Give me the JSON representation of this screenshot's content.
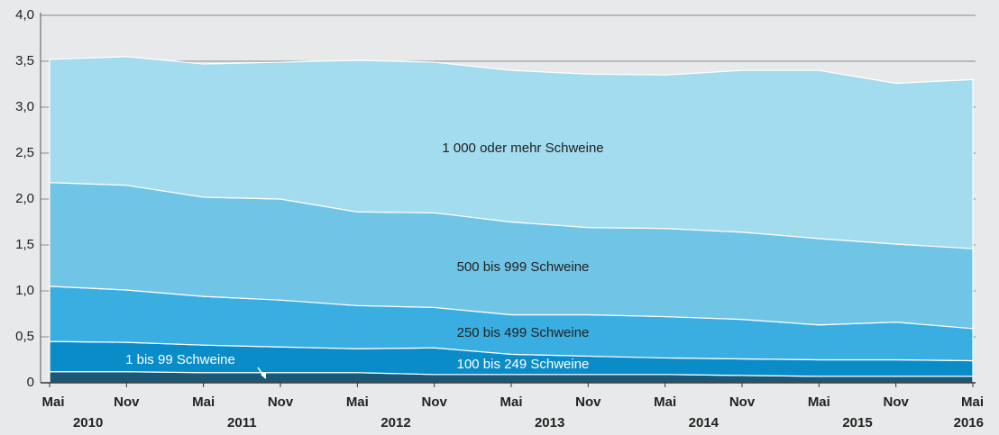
{
  "chart_data": {
    "type": "stacked_area",
    "categories": [
      "Mai",
      "Nov",
      "Mai",
      "Nov",
      "Mai",
      "Nov",
      "Mai",
      "Nov",
      "Mai",
      "Nov",
      "Mai",
      "Nov",
      "Mai"
    ],
    "year_labels": [
      "2010",
      "2011",
      "2012",
      "2013",
      "2014",
      "2015",
      "2016"
    ],
    "series": [
      {
        "name": "1 bis 99 Schweine",
        "color": "#1b5876",
        "values": [
          0.12,
          0.12,
          0.11,
          0.11,
          0.11,
          0.09,
          0.09,
          0.09,
          0.09,
          0.08,
          0.07,
          0.07,
          0.07
        ]
      },
      {
        "name": "100 bis 249 Schweine",
        "color": "#0a8cc9",
        "values": [
          0.33,
          0.32,
          0.3,
          0.28,
          0.26,
          0.29,
          0.22,
          0.2,
          0.18,
          0.18,
          0.18,
          0.18,
          0.17
        ]
      },
      {
        "name": "250 bis 499 Schweine",
        "color": "#3aaee0",
        "values": [
          0.6,
          0.57,
          0.53,
          0.51,
          0.47,
          0.44,
          0.43,
          0.45,
          0.45,
          0.43,
          0.38,
          0.41,
          0.35
        ]
      },
      {
        "name": "500 bis 999 Schweine",
        "color": "#70c4e6",
        "values": [
          1.13,
          1.14,
          1.08,
          1.1,
          1.02,
          1.03,
          1.01,
          0.95,
          0.96,
          0.95,
          0.94,
          0.85,
          0.87
        ]
      },
      {
        "name": "1 000 oder mehr Schweine",
        "color": "#a3dbef",
        "values": [
          1.34,
          1.4,
          1.45,
          1.49,
          1.65,
          1.64,
          1.65,
          1.67,
          1.67,
          1.76,
          1.83,
          1.75,
          1.84
        ]
      }
    ],
    "ylim": [
      0,
      4
    ],
    "yticks": [
      0,
      {
        "value": 0.5,
        "label": "0,5"
      },
      {
        "value": 1,
        "label": "1,0"
      },
      {
        "value": 1.5,
        "label": "1,5"
      },
      {
        "value": 2,
        "label": "2,0"
      },
      {
        "value": 2.5,
        "label": "2,5"
      },
      {
        "value": 3,
        "label": "3,0"
      },
      {
        "value": 3.5,
        "label": "3,5"
      },
      {
        "value": 4,
        "label": "4,0"
      }
    ],
    "grid": true
  }
}
